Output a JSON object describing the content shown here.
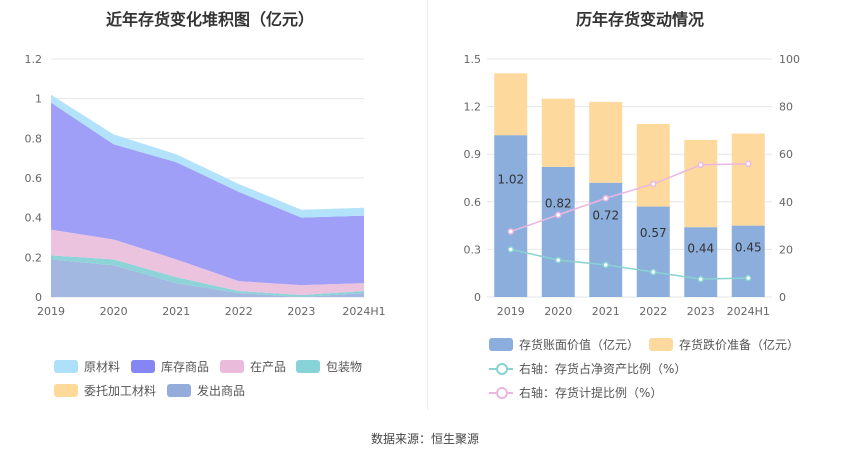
{
  "left_title": "近年存货变化堆积图（亿元）",
  "right_title": "历年存货变动情况",
  "source": "数据来源：恒生聚源",
  "chart_data": [
    {
      "type": "area",
      "stacked": true,
      "title": "近年存货变化堆积图（亿元）",
      "categories": [
        "2019",
        "2020",
        "2021",
        "2022",
        "2023",
        "2024H1"
      ],
      "ylim": [
        0,
        1.2
      ],
      "yticks": [
        "0",
        "0.2",
        "0.4",
        "0.6",
        "0.8",
        "1",
        "1.2"
      ],
      "grid": true,
      "legend_position": "bottom",
      "series": [
        {
          "name": "发出商品",
          "color": "#a3b8e0",
          "values": [
            0.19,
            0.16,
            0.07,
            0.02,
            0.0,
            0.02
          ]
        },
        {
          "name": "包装物",
          "color": "#8dd3d8",
          "values": [
            0.02,
            0.03,
            0.03,
            0.01,
            0.01,
            0.01
          ]
        },
        {
          "name": "在产品",
          "color": "#ecc3df",
          "values": [
            0.13,
            0.1,
            0.09,
            0.05,
            0.05,
            0.04
          ]
        },
        {
          "name": "库存商品",
          "color": "#9f9ff7",
          "values": [
            0.64,
            0.48,
            0.49,
            0.45,
            0.34,
            0.34
          ]
        },
        {
          "name": "委托加工材料",
          "color": "#fdd99a",
          "values": [
            0.0,
            0.0,
            0.0,
            0.0,
            0.0,
            0.0
          ]
        },
        {
          "name": "原材料",
          "color": "#b3e3fa",
          "values": [
            0.04,
            0.05,
            0.04,
            0.04,
            0.04,
            0.04
          ]
        }
      ],
      "legend": [
        {
          "name": "原材料",
          "color": "#aee0fa"
        },
        {
          "name": "库存商品",
          "color": "#8585f3"
        },
        {
          "name": "在产品",
          "color": "#ebbbdb"
        },
        {
          "name": "包装物",
          "color": "#88d3d8"
        },
        {
          "name": "委托加工材料",
          "color": "#fdd99a"
        },
        {
          "name": "发出商品",
          "color": "#93acdb"
        }
      ]
    },
    {
      "type": "bar",
      "stacked": true,
      "title": "历年存货变动情况",
      "categories": [
        "2019",
        "2020",
        "2021",
        "2022",
        "2023",
        "2024H1"
      ],
      "ylim_left": [
        0,
        1.5
      ],
      "yticks_left": [
        "0",
        "0.3",
        "0.6",
        "0.9",
        "1.2",
        "1.5"
      ],
      "ylim_right": [
        0,
        100
      ],
      "yticks_right": [
        "0",
        "20",
        "40",
        "60",
        "80",
        "100"
      ],
      "grid": true,
      "legend_position": "bottom",
      "bars": [
        {
          "name": "存货账面价值（亿元）",
          "color": "#8caedd",
          "values": [
            1.02,
            0.82,
            0.72,
            0.57,
            0.44,
            0.45
          ],
          "labels": [
            "1.02",
            "0.82",
            "0.72",
            "0.57",
            "0.44",
            "0.45"
          ]
        },
        {
          "name": "存货跌价准备（亿元）",
          "color": "#fed99d",
          "values": [
            0.39,
            0.43,
            0.51,
            0.52,
            0.55,
            0.58
          ]
        }
      ],
      "lines": [
        {
          "name": "右轴：存货占净资产比例（%）",
          "color": "#88d3d0",
          "values": [
            20,
            15.5,
            13.5,
            10.5,
            7.5,
            8
          ]
        },
        {
          "name": "右轴：存货计提比例（%）",
          "color": "#e9b7e0",
          "values": [
            27.5,
            34.5,
            41.5,
            47.5,
            55.5,
            56
          ]
        }
      ]
    }
  ]
}
